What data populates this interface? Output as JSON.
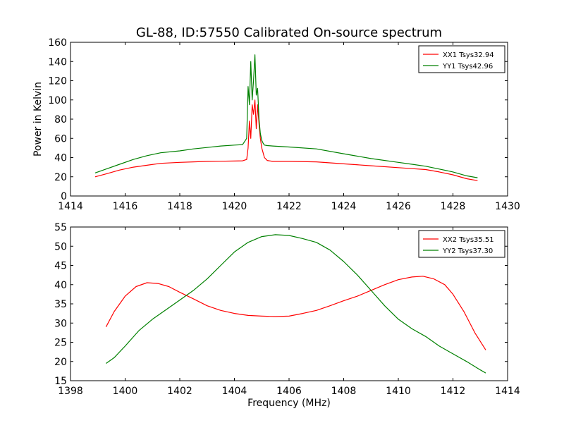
{
  "figure": {
    "title": "GL-88, ID:57550 Calibrated On-source spectrum"
  },
  "chart_data": [
    {
      "type": "line",
      "title": "GL-88, ID:57550 Calibrated On-source spectrum",
      "xlabel": "",
      "ylabel": "Power in Kelvin",
      "xlim": [
        1414,
        1430
      ],
      "ylim": [
        0,
        160
      ],
      "xticks": [
        1414,
        1416,
        1418,
        1420,
        1422,
        1424,
        1426,
        1428,
        1430
      ],
      "yticks": [
        0,
        20,
        40,
        60,
        80,
        100,
        120,
        140,
        160
      ],
      "grid": false,
      "legend": "top-right",
      "series": [
        {
          "name": "XX1 Tsys32.94",
          "color": "#ff0000",
          "x": [
            1414.9,
            1415.3,
            1415.8,
            1416.3,
            1416.8,
            1417.3,
            1418.0,
            1418.5,
            1419.0,
            1419.5,
            1420.0,
            1420.3,
            1420.45,
            1420.5,
            1420.55,
            1420.6,
            1420.65,
            1420.7,
            1420.75,
            1420.8,
            1420.85,
            1420.9,
            1420.95,
            1421.0,
            1421.05,
            1421.1,
            1421.2,
            1421.4,
            1422.0,
            1423.0,
            1424.0,
            1425.0,
            1426.0,
            1426.5,
            1427.0,
            1427.5,
            1428.0,
            1428.5,
            1428.9
          ],
          "y": [
            20,
            23,
            27,
            30,
            32,
            34,
            35,
            35.5,
            36,
            36.2,
            36.4,
            36.6,
            38,
            50,
            78,
            60,
            95,
            85,
            100,
            70,
            95,
            75,
            60,
            50,
            45,
            40,
            37,
            36,
            36,
            35.5,
            33.5,
            31.5,
            29.5,
            28.5,
            27.5,
            25,
            22,
            18,
            16
          ]
        },
        {
          "name": "YY1 Tsys42.96",
          "color": "#008000",
          "x": [
            1414.9,
            1415.3,
            1415.8,
            1416.3,
            1416.8,
            1417.3,
            1418.0,
            1418.5,
            1419.0,
            1419.5,
            1420.0,
            1420.3,
            1420.45,
            1420.5,
            1420.55,
            1420.6,
            1420.65,
            1420.7,
            1420.75,
            1420.8,
            1420.85,
            1420.9,
            1420.95,
            1421.0,
            1421.05,
            1421.1,
            1421.2,
            1421.4,
            1422.0,
            1423.0,
            1424.0,
            1425.0,
            1426.0,
            1426.5,
            1427.0,
            1427.5,
            1428.0,
            1428.5,
            1428.9
          ],
          "y": [
            24,
            28,
            33,
            38,
            42,
            45,
            47,
            49,
            50.5,
            52,
            53,
            53.5,
            60,
            114,
            95,
            140,
            100,
            120,
            147,
            105,
            112,
            80,
            65,
            58,
            55,
            53,
            52.5,
            52,
            51,
            49,
            44,
            39,
            35,
            33,
            31,
            28,
            25,
            21,
            19
          ]
        }
      ]
    },
    {
      "type": "line",
      "title": "",
      "xlabel": "Frequency (MHz)",
      "ylabel": "",
      "xlim": [
        1398,
        1414
      ],
      "ylim": [
        15,
        55
      ],
      "xticks": [
        1398,
        1400,
        1402,
        1404,
        1406,
        1408,
        1410,
        1412,
        1414
      ],
      "yticks": [
        15,
        20,
        25,
        30,
        35,
        40,
        45,
        50,
        55
      ],
      "grid": false,
      "legend": "top-right",
      "series": [
        {
          "name": "XX2 Tsys35.51",
          "color": "#ff0000",
          "x": [
            1399.3,
            1399.6,
            1400.0,
            1400.4,
            1400.8,
            1401.2,
            1401.6,
            1402.0,
            1402.5,
            1403.0,
            1403.5,
            1404.0,
            1404.5,
            1405.0,
            1405.5,
            1406.0,
            1406.5,
            1407.0,
            1407.5,
            1408.0,
            1408.5,
            1409.0,
            1409.5,
            1410.0,
            1410.5,
            1410.9,
            1411.3,
            1411.7,
            1412.0,
            1412.4,
            1412.8,
            1413.2
          ],
          "y": [
            29,
            33,
            37,
            39.5,
            40.5,
            40.3,
            39.5,
            38,
            36.3,
            34.5,
            33.3,
            32.5,
            32,
            31.8,
            31.7,
            31.8,
            32.5,
            33.3,
            34.5,
            35.8,
            37,
            38.5,
            40,
            41.3,
            42,
            42.2,
            41.5,
            40,
            37.5,
            33,
            27.5,
            23
          ]
        },
        {
          "name": "YY2 Tsys37.30",
          "color": "#008000",
          "x": [
            1399.3,
            1399.6,
            1400.0,
            1400.5,
            1401.0,
            1401.5,
            1402.0,
            1402.5,
            1403.0,
            1403.5,
            1404.0,
            1404.5,
            1405.0,
            1405.5,
            1406.0,
            1406.5,
            1407.0,
            1407.5,
            1408.0,
            1408.5,
            1409.0,
            1409.5,
            1410.0,
            1410.5,
            1411.0,
            1411.5,
            1412.0,
            1412.5,
            1413.0,
            1413.2
          ],
          "y": [
            19.5,
            21,
            24,
            28,
            31,
            33.5,
            36,
            38.5,
            41.5,
            45,
            48.5,
            51,
            52.5,
            53,
            52.8,
            52,
            51,
            49,
            46,
            42.5,
            38.5,
            34.5,
            31,
            28.5,
            26.5,
            24,
            22,
            20,
            17.8,
            17
          ]
        }
      ]
    }
  ]
}
